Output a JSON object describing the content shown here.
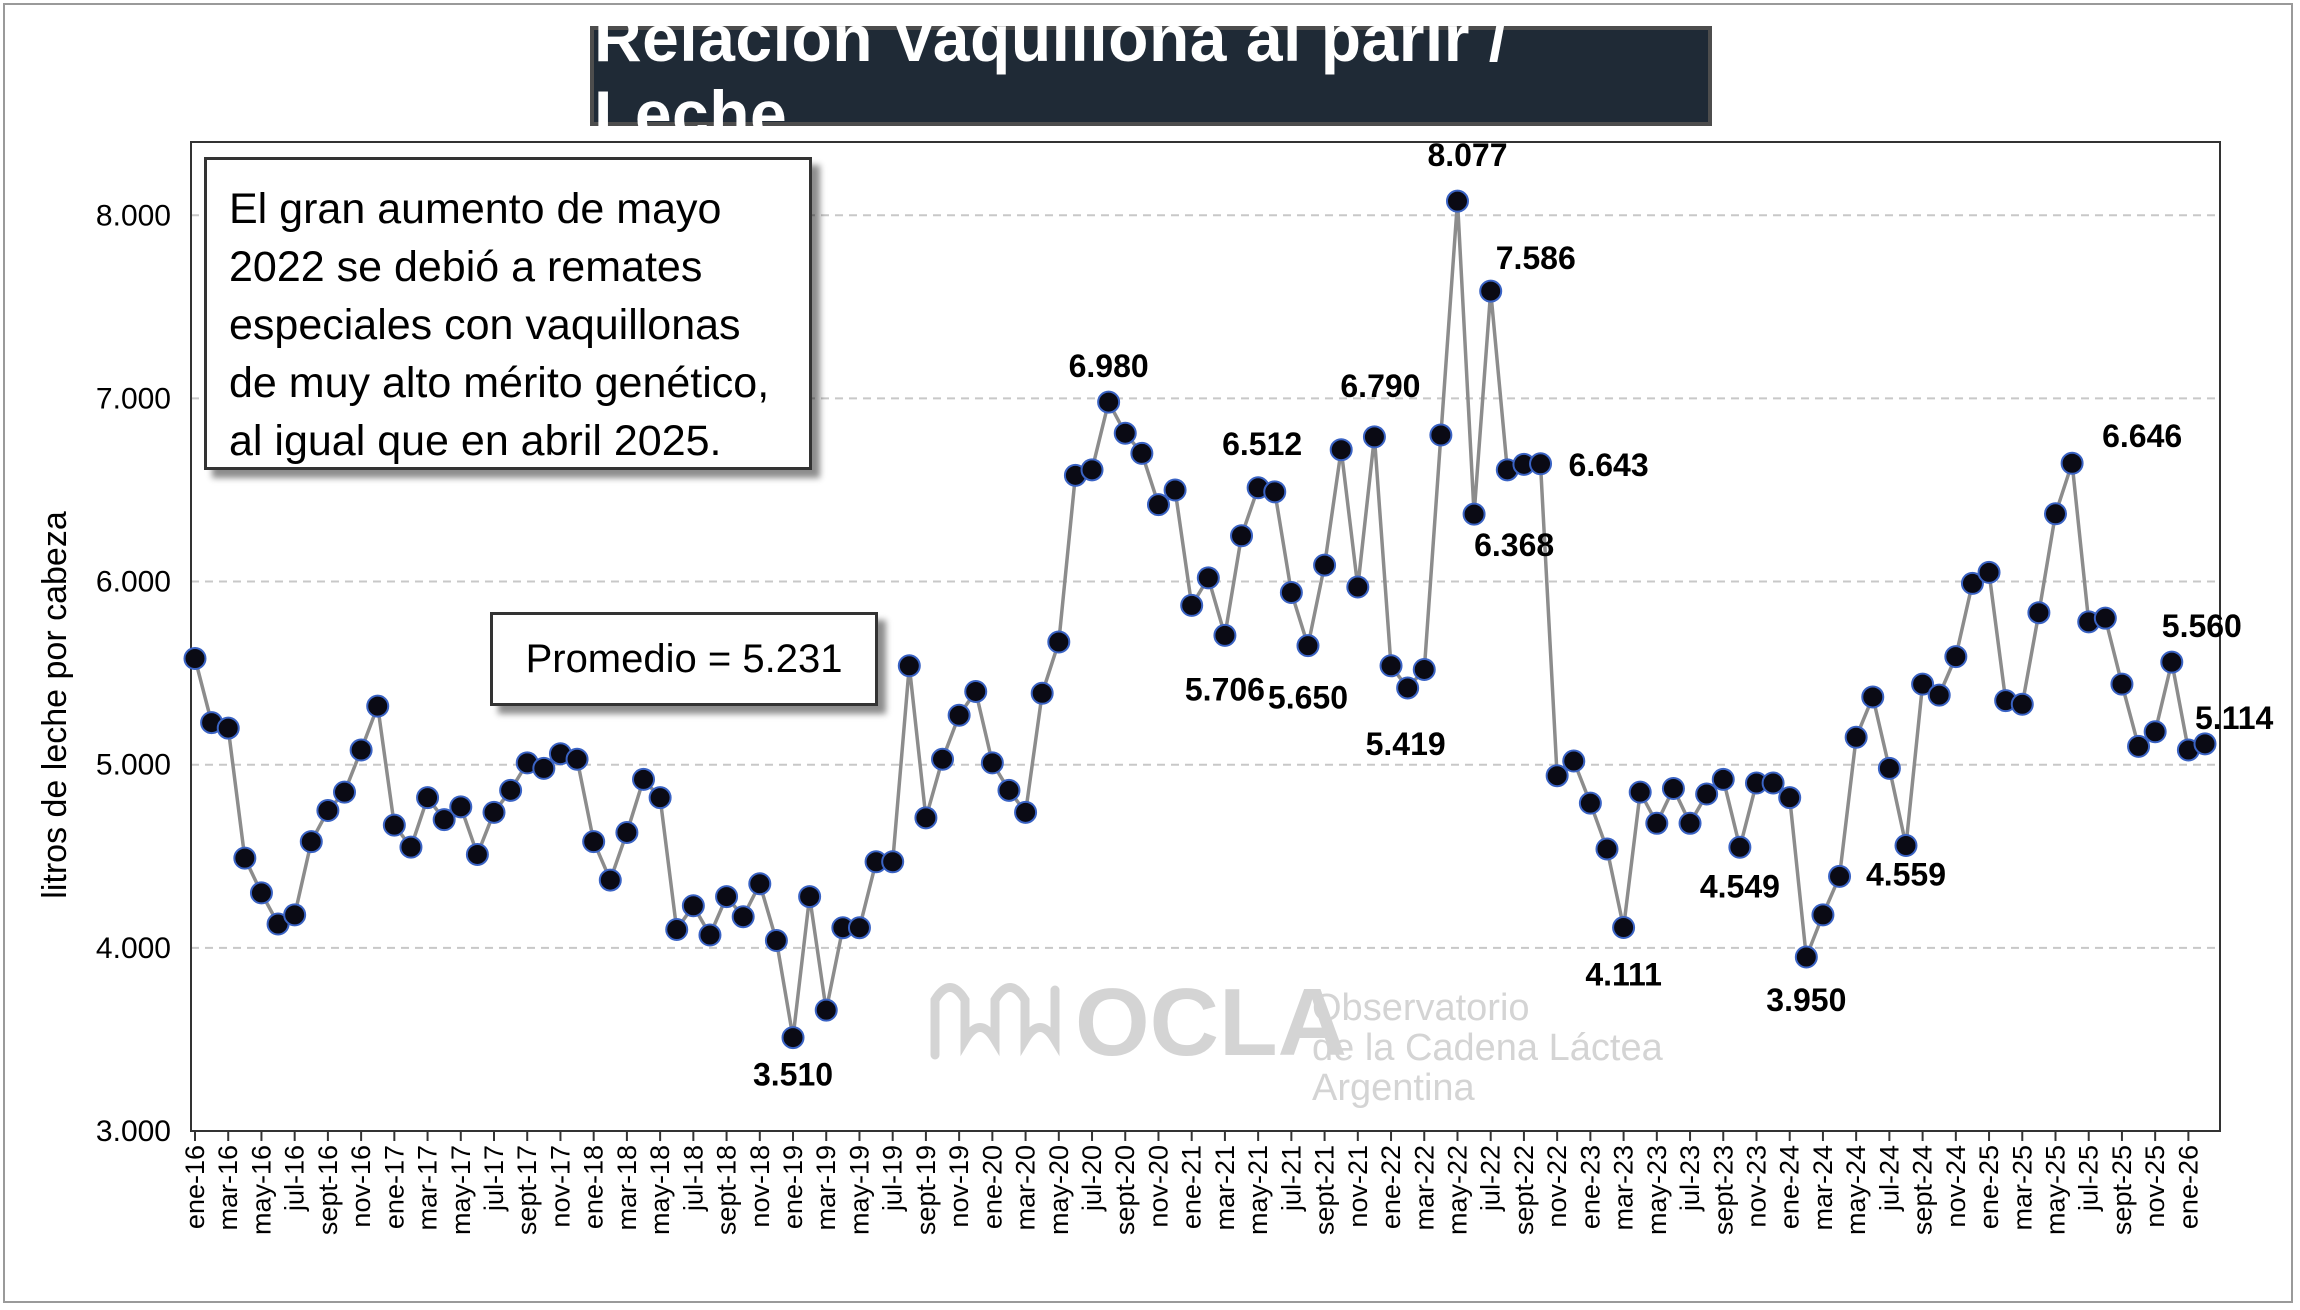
{
  "title": "Relación Vaquillona al parir / Leche",
  "note": "El gran  aumento de mayo 2022  se debió a remates especiales con vaquillonas de muy alto mérito genético, al igual que en abril 2025.",
  "average_label": "Promedio = 5.231",
  "watermark": {
    "brand": "OCLA",
    "line1": "Observatorio",
    "line2": "de la Cadena Láctea",
    "line3": "Argentina"
  },
  "colors": {
    "title_bg": "#1f2a36",
    "line": "#8c8c8c",
    "marker": "#0a0a14",
    "marker_edge": "#3a63c4",
    "grid": "#c8c8c8"
  },
  "chart_data": {
    "type": "line",
    "title": "Relación Vaquillona al parir / Leche",
    "ylabel": "litros de leche por cabeza",
    "xlabel": "",
    "ylim": [
      3000,
      8400
    ],
    "yticks": [
      "3.000",
      "4.000",
      "5.000",
      "6.000",
      "7.000",
      "8.000"
    ],
    "ytick_values": [
      3000,
      4000,
      5000,
      6000,
      7000,
      8000
    ],
    "grid": "horizontal dashed",
    "xtick_labels": [
      "ene-16",
      "mar-16",
      "may-16",
      "jul-16",
      "sept-16",
      "nov-16",
      "ene-17",
      "mar-17",
      "may-17",
      "jul-17",
      "sept-17",
      "nov-17",
      "ene-18",
      "mar-18",
      "may-18",
      "jul-18",
      "sept-18",
      "nov-18",
      "ene-19",
      "mar-19",
      "may-19",
      "jul-19",
      "sept-19",
      "nov-19",
      "ene-20",
      "mar-20",
      "may-20",
      "jul-20",
      "sept-20",
      "nov-20",
      "ene-21",
      "mar-21",
      "may-21",
      "jul-21",
      "sept-21",
      "nov-21",
      "ene-22",
      "mar-22",
      "may-22",
      "jul-22",
      "sept-22",
      "nov-22",
      "ene-23",
      "mar-23",
      "may-23",
      "jul-23",
      "sept-23",
      "nov-23",
      "ene-24",
      "mar-24",
      "may-24",
      "jul-24",
      "sept-24",
      "nov-24",
      "ene-25",
      "mar-25",
      "may-25",
      "jul-25",
      "sept-25",
      "nov-25",
      "ene-26"
    ],
    "series": [
      {
        "values": [
          5580,
          5230,
          5200,
          4490,
          4300,
          4130,
          4180,
          4580,
          4750,
          4850,
          5080,
          5320,
          4670,
          4550,
          4820,
          4700,
          4770,
          4510,
          4740,
          4860,
          5010,
          4980,
          5060,
          5030,
          4580,
          4370,
          4630,
          4920,
          4820,
          4100,
          4230,
          4070,
          4280,
          4170,
          4350,
          4040,
          3510,
          4280,
          3660,
          4110,
          4110,
          4470,
          4470,
          5540,
          4710,
          5030,
          5270,
          5400,
          5010,
          4860,
          4740,
          5390,
          5670,
          6580,
          6610,
          6980,
          6810,
          6700,
          6420,
          6500,
          5870,
          6020,
          5706,
          6250,
          6512,
          6490,
          5940,
          5650,
          6090,
          6720,
          5970,
          6790,
          5540,
          5419,
          5520,
          6800,
          8077,
          6368,
          7586,
          6610,
          6640,
          6643,
          4940,
          5020,
          4790,
          4540,
          4111,
          4850,
          4680,
          4870,
          4680,
          4840,
          4920,
          4549,
          4900,
          4900,
          4820,
          3950,
          4180,
          4390,
          5150,
          5370,
          4980,
          4559,
          5440,
          5380,
          5590,
          5990,
          6050,
          5350,
          5330,
          5830,
          6370,
          6646,
          5780,
          5800,
          5440,
          5100,
          5180,
          5560,
          5080,
          5114
        ]
      }
    ],
    "data_labels": [
      {
        "index": 36,
        "text": "3.510"
      },
      {
        "index": 55,
        "text": "6.980"
      },
      {
        "index": 62,
        "text": "5.706"
      },
      {
        "index": 64,
        "text": "6.512"
      },
      {
        "index": 67,
        "text": "5.650"
      },
      {
        "index": 71,
        "text": "6.790"
      },
      {
        "index": 73,
        "text": "5.419"
      },
      {
        "index": 76,
        "text": "8.077"
      },
      {
        "index": 77,
        "text": "6.368"
      },
      {
        "index": 78,
        "text": "7.586"
      },
      {
        "index": 81,
        "text": "6.643"
      },
      {
        "index": 86,
        "text": "4.111"
      },
      {
        "index": 93,
        "text": "4.549"
      },
      {
        "index": 97,
        "text": "3.950"
      },
      {
        "index": 103,
        "text": "4.559"
      },
      {
        "index": 113,
        "text": "6.646"
      },
      {
        "index": 119,
        "text": "5.560"
      },
      {
        "index": 121,
        "text": "5.114"
      }
    ]
  }
}
